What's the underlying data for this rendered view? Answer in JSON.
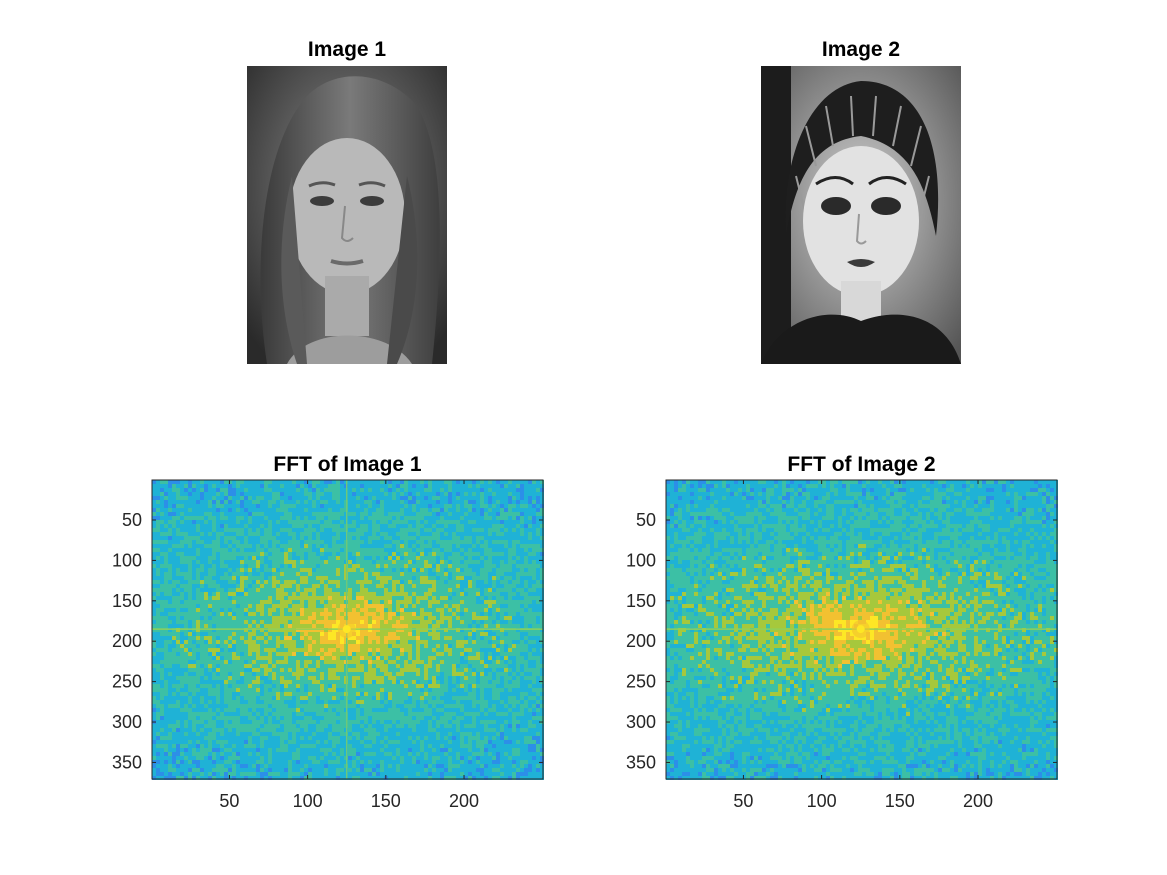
{
  "figure": {
    "top_row": [
      {
        "title": "Image 1",
        "description_icon": "portrait-photo-1"
      },
      {
        "title": "Image 2",
        "description_icon": "portrait-photo-2"
      }
    ]
  },
  "chart_data": [
    {
      "type": "heatmap",
      "title": "FFT of Image 1",
      "xlabel": "",
      "ylabel": "",
      "xlim": [
        0.5,
        250.5
      ],
      "ylim": [
        0.5,
        370.5
      ],
      "y_reversed": true,
      "xticks": [
        50,
        100,
        150,
        200
      ],
      "yticks": [
        50,
        100,
        150,
        200,
        250,
        300,
        350
      ],
      "center": [
        125,
        185
      ],
      "cross": "horizontal and vertical",
      "colormap": [
        "#3b5fe6",
        "#2c8fe8",
        "#1fb2d6",
        "#3cc0a5",
        "#a6c83c",
        "#f2c131",
        "#fde725"
      ]
    },
    {
      "type": "heatmap",
      "title": "FFT of Image 2",
      "xlabel": "",
      "ylabel": "",
      "xlim": [
        0.5,
        250.5
      ],
      "ylim": [
        0.5,
        370.5
      ],
      "y_reversed": true,
      "xticks": [
        50,
        100,
        150,
        200
      ],
      "yticks": [
        50,
        100,
        150,
        200,
        250,
        300,
        350
      ],
      "center": [
        125,
        185
      ],
      "cross": "horizontal",
      "colormap": [
        "#3b5fe6",
        "#2c8fe8",
        "#1fb2d6",
        "#3cc0a5",
        "#a6c83c",
        "#f2c131",
        "#fde725"
      ]
    }
  ]
}
